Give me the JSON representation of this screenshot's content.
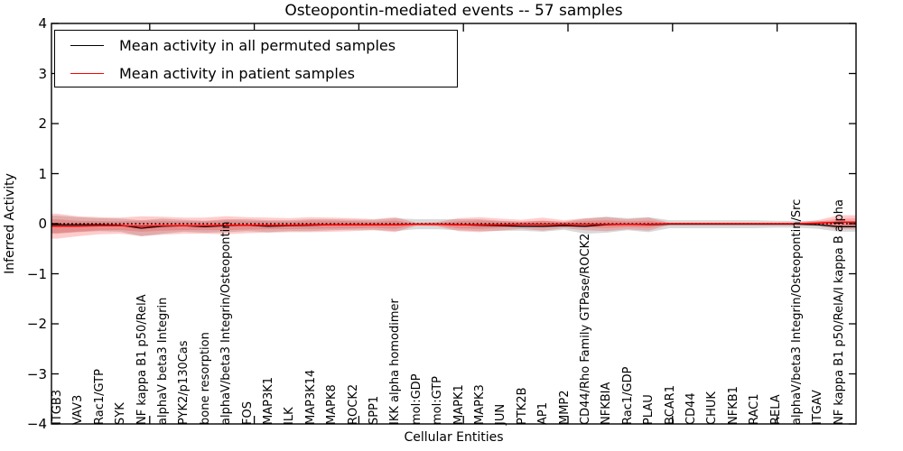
{
  "chart_data": {
    "type": "line",
    "title": "Osteopontin-mediated events -- 57 samples",
    "xlabel": "Cellular Entities",
    "ylabel": "Inferred Activity",
    "ylim": [
      -4,
      4
    ],
    "yticks": [
      4,
      3,
      2,
      1,
      0,
      -1,
      -2,
      -3,
      -4
    ],
    "grid": false,
    "legend_position": "upper left",
    "zero_line": 0,
    "categories": [
      "ITGB3",
      "VAV3",
      "Rac1/GTP",
      "SYK",
      "NF kappa B1 p50/RelA",
      "alphaV beta3 Integrin",
      "PYK2/p130Cas",
      "bone resorption",
      "alphaV/beta3 Integrin/Osteopontin",
      "FOS",
      "MAP3K1",
      "ILK",
      "MAP3K14",
      "MAPK8",
      "ROCK2",
      "SPP1",
      "IKK alpha homodimer",
      "mol:GDP",
      "mol:GTP",
      "MAPK1",
      "MAPK3",
      "JUN",
      "PTK2B",
      "AP1",
      "MMP2",
      "CD44/Rho Family GTPase/ROCK2",
      "NFKBIA",
      "Rac1/GDP",
      "PLAU",
      "BCAR1",
      "CD44",
      "CHUK",
      "NFKB1",
      "RAC1",
      "RELA",
      "alphaV/beta3 Integrin/Osteopontin/Src",
      "ITGAV",
      "NF kappa B1 p50/RelA/I kappa B alpha"
    ],
    "series": [
      {
        "name": "Mean activity in all permuted samples",
        "color": "#000000",
        "values": [
          -0.02,
          -0.02,
          -0.02,
          -0.03,
          -0.09,
          -0.05,
          -0.04,
          -0.06,
          -0.04,
          -0.03,
          -0.05,
          -0.04,
          -0.03,
          -0.02,
          -0.02,
          -0.02,
          -0.02,
          -0.01,
          -0.01,
          -0.02,
          -0.03,
          -0.04,
          -0.05,
          -0.05,
          -0.04,
          -0.05,
          -0.02,
          -0.01,
          -0.02,
          -0.01,
          -0.01,
          -0.01,
          -0.01,
          -0.01,
          -0.01,
          -0.01,
          -0.02,
          -0.06
        ]
      },
      {
        "name": "Mean activity in patient samples",
        "color": "#ff0000",
        "values": [
          -0.05,
          -0.05,
          -0.04,
          -0.04,
          -0.05,
          -0.04,
          -0.04,
          -0.04,
          -0.03,
          -0.03,
          -0.03,
          -0.03,
          -0.02,
          -0.02,
          -0.02,
          -0.02,
          -0.02,
          -0.01,
          -0.01,
          -0.02,
          -0.02,
          -0.02,
          -0.01,
          -0.01,
          -0.01,
          -0.01,
          -0.01,
          -0.01,
          -0.01,
          0,
          0,
          0,
          0,
          0,
          0,
          0,
          0.01,
          0.03
        ]
      }
    ],
    "bands": [
      {
        "name": "permuted samples range",
        "color_rgb": "128,128,128",
        "half_width": [
          0.18,
          0.15,
          0.13,
          0.13,
          0.16,
          0.15,
          0.12,
          0.12,
          0.13,
          0.12,
          0.12,
          0.11,
          0.12,
          0.11,
          0.1,
          0.1,
          0.13,
          0.1,
          0.1,
          0.11,
          0.12,
          0.1,
          0.09,
          0.11,
          0.08,
          0.15,
          0.16,
          0.12,
          0.15,
          0.08,
          0.08,
          0.08,
          0.08,
          0.08,
          0.07,
          0.07,
          0.08,
          0.1
        ]
      },
      {
        "name": "patient samples range",
        "color_rgb": "255,0,0",
        "half_width": [
          0.25,
          0.2,
          0.17,
          0.16,
          0.2,
          0.18,
          0.16,
          0.16,
          0.18,
          0.16,
          0.15,
          0.14,
          0.15,
          0.14,
          0.13,
          0.11,
          0.15,
          0.03,
          0.04,
          0.13,
          0.15,
          0.12,
          0.09,
          0.13,
          0.08,
          0.12,
          0.14,
          0.1,
          0.13,
          0.02,
          0.02,
          0.02,
          0.02,
          0.02,
          0.02,
          0.02,
          0.06,
          0.14
        ]
      }
    ]
  },
  "legend": {
    "items": [
      {
        "label": "Mean activity in all permuted samples",
        "color": "#000000"
      },
      {
        "label": "Mean activity in patient samples",
        "color": "#ff0000"
      }
    ]
  }
}
